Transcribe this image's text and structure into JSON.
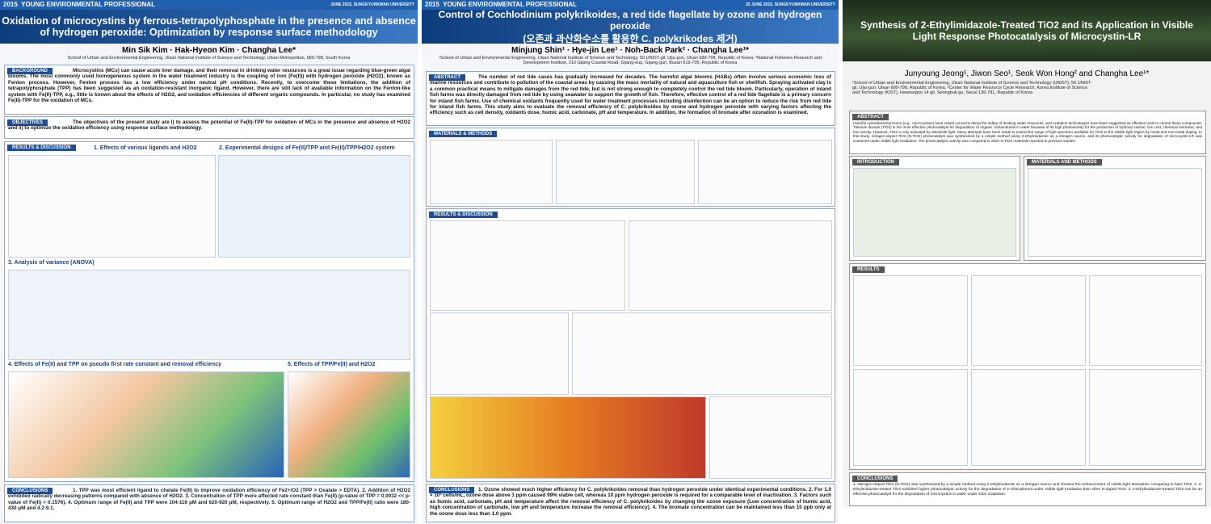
{
  "posters": [
    {
      "banner": {
        "year": "2015",
        "event": "YOUNG ENVIRONMENTAL PROFESSIONAL",
        "date": "JUNE 2015, SUNGKYUNKWAN UNIVERSITY"
      },
      "title": "Oxidation of microcystins by ferrous-tetrapolyphosphate in the presence and absence of hydrogen peroxide: Optimization by response surface methodology",
      "authors": "Min Sik Kim · Hak-Hyeon Kim · Changha Lee*",
      "affiliation": "School of Urban and Environmental Engineering, Ulsan National Institute of Science and Technology, Ulsan Metropolitan, 689-798, South Korea",
      "sections": [
        {
          "heading": "BACKGROUND",
          "text": "Microcystins (MCs) can cause acute liver damage, and their removal in drinking water resources is a great issue regarding blue-green algal blooms. The most commonly used homogeneous system in the water treatment industry is the coupling of iron (Fe(II)) with hydrogen peroxide (H2O2), known as Fenton process. However, Fenton process has a low efficiency under neutral pH conditions. Recently, to overcome these limitations, the addition of tetrapolyphosphate (TPP) has been suggested as an oxidation-resistant inorganic ligand. However, there are still lack of available information on the Fenton-like system with Fe(II)-TPP, e.g., little is known about the effects of H2O2, and oxidation efficiencies of different organic compounds. In particular, no study has examined Fe(II)-TPP for the oxidation of MCs."
        },
        {
          "heading": "OBJECTIVES",
          "text": "The objectives of the present study are i) to assess the potential of Fe(II)-TPP for oxidation of MCs in the presence and absence of H2O2 and ii) to optimize the oxidation efficiency using response surface methodology."
        },
        {
          "heading": "RESULTS & DISCUSSION",
          "subheadings": [
            "1. Effects of various ligands and H2O2",
            "2. Experimental designs of Fe(II)/TPP and Fe(II)/TPP/H2O2 system",
            "3. Analysis of variance (ANOVA)",
            "4. Effects of Fe(II) and TPP on pseudo first rate constant and removal efficiency",
            "5. Effects of TPP/Fe(II) and H2O2"
          ]
        },
        {
          "heading": "CONCLUSIONS",
          "text": "1. TPP was most efficient ligand to chelate Fe(II) to improve oxidation efficiency of Fe2+/O2 (TPP > Oxalate > EDTA). 2. Addition of H2O2 exhibited radically decreasing patterns compared with absence of H2O2. 3. Concentration of TPP more affected rate constant than Fe(II) (p-value of TPP = 0.0032 << p-value of Fe(II) = 0.1576). 4. Optimum range of Fe(II) and TPP were 104-116 μM and 620-920 μM, respectively. 5. Optimum range of H2O2 and TPP/Fe(II) ratio were 180-430 μM and 4.2-9.1."
        }
      ]
    },
    {
      "banner": {
        "year": "2015",
        "event": "YOUNG ENVIRONMENTAL PROFESSIONAL",
        "date": "25 JUNE 2015, SUNGKYUNKWAN UNIVERSITY"
      },
      "title": "Control of Cochlodinium polykrikoides, a red tide flagellate by ozone and hydrogen peroxide",
      "subtitle": "(오존과 과산화수소를 활용한 C. polykrikodes 제거)",
      "authors": "Minjung Shin¹ · Hye-jin Lee¹ · Noh-Back Park² · Changha Lee¹*",
      "affiliation": "¹School of Urban and Environmental Engineering, Ulsan National Institute of Science and Technology, 50 UNIST-gil, Ulju-gun, Ulsan 689-798, Republic of Korea; ²National Fisheries Research and Development Institute, 216 Gijang Coastal Road, Gijang-eup, Gijang-gun, Busan 619-705, Republic of Korea",
      "sections": [
        {
          "heading": "ABSTRACT",
          "text": "The number of red tide cases has gradually increased for decades. The harmful algal blooms (HABs) often involve serious economic loss of marine resources and contribute to pollution of the coastal areas by causing the mass mortality of natural and aquaculture fish or shellfish. Spraying activated clay is a common practical means to mitigate damages from the red tide, but is not strong enough to completely control the red tide bloom. Particularly, operation of inland fish farms was directly damaged from red tide by using seawater to support the growth of fish. Therefore, effective control of a red tide flagellate is a primary concern for inland fish farms. Use of chemical oxidants frequently used for water treatment processes including disinfection can be an option to reduce the risk from red tide for inland fish farms. This study aims to evaluate the removal efficiency of C. polykrikoides by ozone and hydrogen peroxide with varying factors affecting the efficiency such as cell density, oxidants dose, humic acid, carbonate, pH and temperature. In addition, the formation of bromate after ozonation is examined."
        },
        {
          "heading": "MATERIALS & METHODS"
        },
        {
          "heading": "RESULTS & DISCUSSION"
        },
        {
          "heading": "CONCLUSIONS",
          "text": "1. Ozone showed much higher efficiency for C. polykrikoides removal than hydrogen peroxide under identical experimental conditions. 2. For 1.0 × 10³ cells/mL, ozone dose above 1 ppm caused 99% viable cell, whereas 10 ppm hydrogen peroxide is required for a comparable level of inactivation. 3. Factors such as humic acid, carbonate, pH and temperature affect the removal efficiency of C. polykrikoides by changing the ozone exposure (Low concentration of humic acid, high concentration of carbonate, low pH and temperature increase the removal efficiency). 4. The bromate concentration can be maintained less than 10 ppb only at the ozone dose less than 1.0 ppm."
        }
      ]
    },
    {
      "title": "Synthesis of 2-Ethylimidazole-Treated TiO2 and its Application in Visible Light Response Photocatalysis of Microcystin-LR",
      "authors": "Junyoung Jeong¹, Jiwon Seo¹, Seok Won Hong² and Changha Lee¹*",
      "affiliation": "¹School of Urban and Environmental Engineering, Ulsan National Institute of Science and Technology (UNIST), 50 UNIST-gil, Ulju-gun, Ulsan 689-798, Republic of Korea; ²Center for Water Resource Cycle Research, Korea Institute of Science and Technology (KIST), Hwarangno 14 gil, Seongbuk-gu, Seoul 136-791, Republic of Korea",
      "sections": [
        {
          "heading": "ABSTRACT",
          "text": "Harmful cyanobacterial toxins (e.g., microcystins) have raised concerns about the safety of drinking water resources, and oxidation technologies have been suggested as effective tools to control these compounds. Titanium dioxide (TiO2) is the most effective photocatalyst for degradation of organic contaminants in water because of its high photoactivity for the production of hydroxyl radical, low cost, chemical inertness, and low toxicity. However, TiO2 is only activated by ultraviolet light. Many attempts have been made to extend the range of light spectrum available for TiO2 to the visible light region by metal and non-metal doping. In this study, nitrogen-doped TiO2 (N-TiO2) photocatalyst was synthesized by a simple method using 2-ethylimidazole as a nitrogen source, and its photocatalytic activity for degradation of microcystin-LR was examined under visible light irradiation. The photocatalytic activity was compared to other N-TiO2 materials reported in previous studies."
        },
        {
          "heading": "INTRODUCTION"
        },
        {
          "heading": "MATERIALS AND METHODS"
        },
        {
          "heading": "RESULTS"
        },
        {
          "heading": "CONCLUSIONS",
          "text": "1. Nitrogen-doped TiO2 (N-TiO2) was synthesized by a simple method using 2-ethylimidazole as a nitrogen source and showed the enhancement of visible light absorption comparing to bare TiO2. 2. 2-Ethylimidazole-treated TiO2 exhibited higher photocatalytic activity for the degradation of 4-chlorophenol under visible light irradiation than other N-doped TiO2. 3. 2-Ethylimidazole-treated TiO2 can be an effective photocatalyst for the degradation of microcystins in water under solar irradiation."
        }
      ]
    }
  ]
}
